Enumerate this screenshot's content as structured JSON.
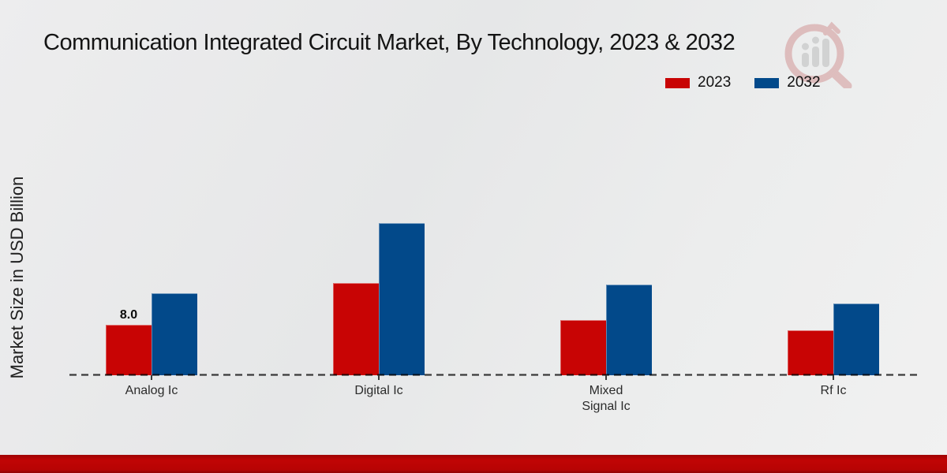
{
  "title": "Communication Integrated Circuit Market, By Technology, 2023 & 2032",
  "watermark_icon": "market-research-future-magnifier-logo",
  "chart_data": {
    "type": "bar",
    "title": "Communication Integrated Circuit Market, By Technology, 2023 & 2032",
    "categories": [
      "Analog Ic",
      "Digital Ic",
      "Mixed Signal Ic",
      "Rf Ic"
    ],
    "series": [
      {
        "name": "2023",
        "color": "#c80404",
        "values": [
          8.0,
          14.6,
          8.8,
          7.1
        ]
      },
      {
        "name": "2032",
        "color": "#02498a",
        "values": [
          13.0,
          24.1,
          14.4,
          11.4
        ]
      }
    ],
    "xlabel": "",
    "ylabel": "Market Size in USD Billion",
    "ylim": [
      0,
      25
    ],
    "grid": false,
    "legend_position": "top-right",
    "baseline_style": "dashed",
    "annotations": [
      {
        "text": "8.0",
        "category_index": 0,
        "series_index": 0
      }
    ]
  },
  "colors": {
    "bar_2023": "#c80404",
    "bar_2032": "#02498a",
    "footer_accent": "#b70404",
    "axis_dash": "#3f3f3f",
    "background": "#e9eaeb"
  }
}
